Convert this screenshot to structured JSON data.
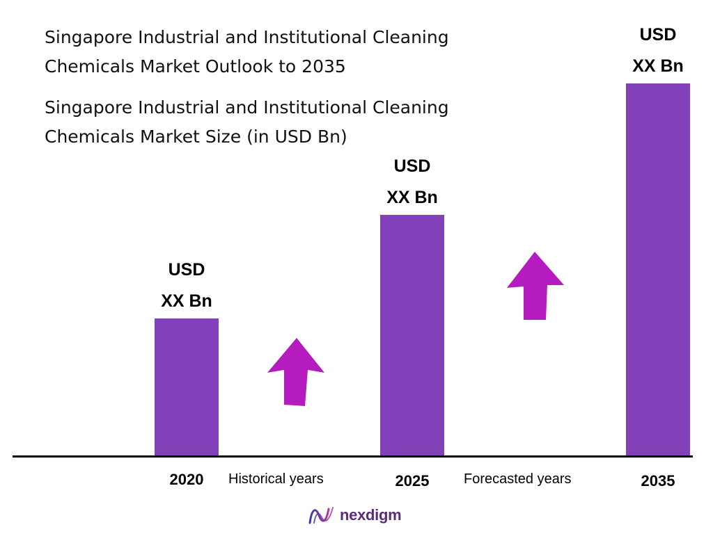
{
  "title_lines": [
    "Singapore Industrial and Institutional Cleaning",
    "Chemicals Market Outlook to 2035"
  ],
  "subtitle_lines": [
    "Singapore Industrial and Institutional Cleaning",
    "Chemicals Market Size (in USD Bn)"
  ],
  "periods": {
    "historical": "Historical years",
    "forecast": "Forecasted years"
  },
  "logo": {
    "text": "nexdigm"
  },
  "colors": {
    "bar": "#8241b8",
    "arrow": "#b41cc0",
    "axis": "#000000",
    "logo": "#5a2d7a"
  },
  "chart_data": {
    "type": "bar",
    "categories": [
      "2020",
      "2025",
      "2035"
    ],
    "values": [
      1.0,
      1.75,
      2.7
    ],
    "value_note": "Relative bar heights (2020 = 1.0); actual values are not printed",
    "data_labels": [
      [
        "USD",
        "XX Bn"
      ],
      [
        "USD",
        "XX Bn"
      ],
      [
        "USD",
        "XX Bn"
      ]
    ],
    "title": "Singapore Industrial and Institutional Cleaning Chemicals Market Size (in USD Bn)",
    "xlabel": "",
    "ylabel": "",
    "ylim": [
      0,
      2.7
    ],
    "grid": false,
    "legend": "none"
  }
}
